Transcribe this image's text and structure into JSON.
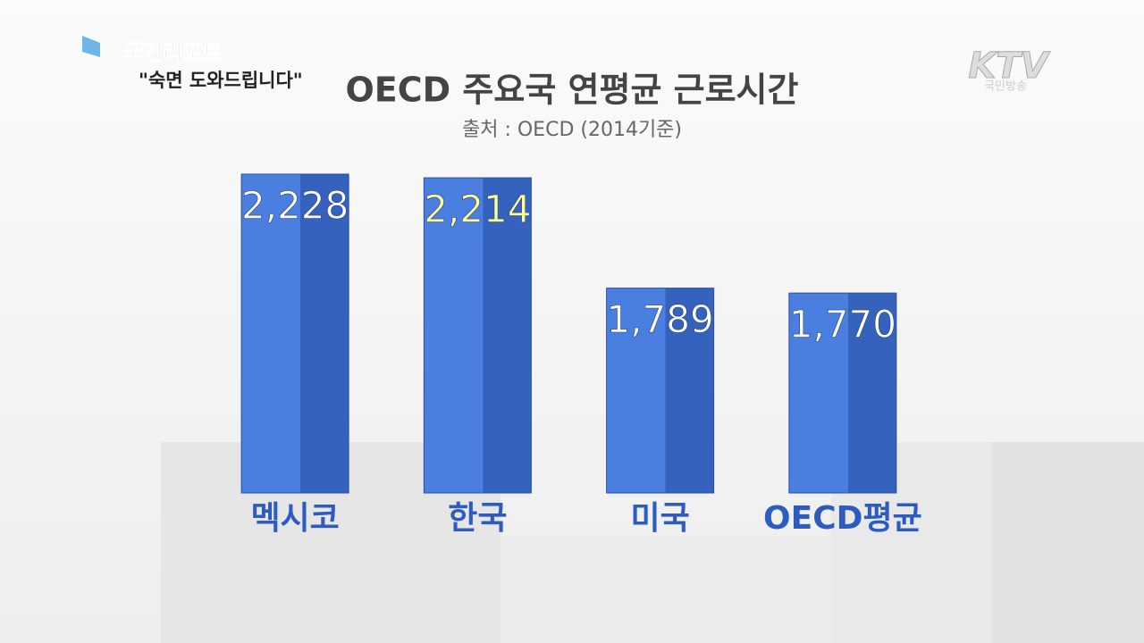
{
  "header": {
    "program": "국민리포트",
    "episode": "\"숙면 도와드립니다\"",
    "channel": "KTV",
    "channel_sub": "국민방송"
  },
  "chart_data": {
    "type": "bar",
    "title": "OECD 주요국 연평균 근로시간",
    "subtitle": "출처 : OECD (2014기준)",
    "categories": [
      "멕시코",
      "한국",
      "미국",
      "OECD평균"
    ],
    "values": [
      2228,
      2214,
      1789,
      1770
    ],
    "value_labels": [
      "2,228",
      "2,214",
      "1,789",
      "1,770"
    ],
    "value_label_colors": [
      "#ffffff",
      "#ffff99",
      "#ffffff",
      "#ffffff"
    ],
    "color": "#4a7fe0",
    "shade_color": "#3462bd",
    "ylim": [
      1000,
      2400
    ]
  }
}
